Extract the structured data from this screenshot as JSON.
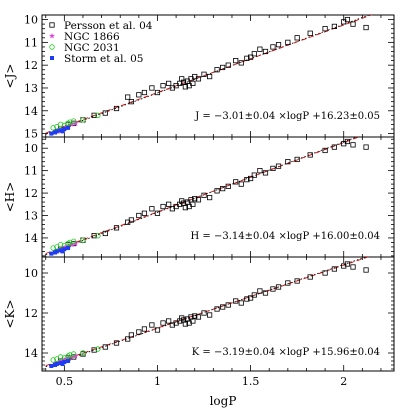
{
  "chart_data": {
    "type": "scatter",
    "xlabel": "logP",
    "xlim": [
      0.38,
      2.27
    ],
    "x_ticks": [
      0.5,
      1,
      1.5,
      2
    ],
    "x_tick_labels": [
      "0.5",
      "1",
      "1.5",
      "2"
    ],
    "legend": {
      "placement": "top-left",
      "entries": [
        {
          "label": "Persson et al. 04",
          "marker": "open-square",
          "color": "#000000"
        },
        {
          "label": "NGC 1866",
          "marker": "star",
          "color": "#e040e0"
        },
        {
          "label": "NGC 2031",
          "marker": "open-circle",
          "color": "#1ec81e"
        },
        {
          "label": "Storm et al. 05",
          "marker": "filled-square",
          "color": "#1f3df0"
        }
      ]
    },
    "panels": [
      {
        "ylabel": "<J>",
        "ylim": [
          15.15,
          9.8
        ],
        "y_ticks": [
          10,
          11,
          12,
          13,
          14,
          15
        ],
        "y_tick_labels": [
          "10",
          "11",
          "12",
          "13",
          "14",
          "15"
        ],
        "equation": "J = −3.01±0.04 ×logP +16.23±0.05",
        "fit": {
          "slope": -3.01,
          "intercept": 16.23
        },
        "alt_fit": {
          "slope": -2.96,
          "intercept": 16.16
        },
        "series": [
          {
            "name": "Persson et al. 04",
            "x": [
              0.48,
              0.52,
              0.55,
              0.6,
              0.66,
              0.72,
              0.78,
              0.84,
              0.86,
              0.9,
              0.93,
              0.97,
              1.0,
              1.03,
              1.06,
              1.08,
              1.1,
              1.12,
              1.13,
              1.14,
              1.15,
              1.16,
              1.17,
              1.18,
              1.19,
              1.2,
              1.22,
              1.25,
              1.28,
              1.32,
              1.35,
              1.38,
              1.42,
              1.45,
              1.48,
              1.5,
              1.52,
              1.55,
              1.58,
              1.62,
              1.65,
              1.7,
              1.75,
              1.82,
              1.9,
              1.95,
              2.0,
              2.02,
              2.05,
              2.12
            ],
            "y": [
              14.8,
              14.6,
              14.55,
              14.4,
              14.2,
              14.1,
              13.9,
              13.4,
              13.6,
              13.3,
              13.2,
              13.0,
              13.2,
              12.9,
              12.8,
              13.0,
              12.9,
              12.8,
              12.6,
              12.75,
              12.95,
              12.7,
              12.9,
              12.6,
              12.8,
              12.5,
              12.6,
              12.4,
              12.5,
              12.2,
              12.1,
              12.0,
              11.8,
              11.9,
              11.7,
              11.65,
              11.5,
              11.3,
              11.4,
              11.2,
              11.1,
              11.0,
              10.8,
              10.6,
              10.4,
              10.3,
              10.1,
              10.0,
              10.2,
              10.35
            ]
          },
          {
            "name": "NGC 1866",
            "x": [
              0.45,
              0.47,
              0.48,
              0.5,
              0.51,
              0.52,
              0.54,
              0.56
            ],
            "y": [
              14.95,
              14.85,
              14.9,
              14.8,
              14.75,
              14.7,
              14.6,
              14.55
            ]
          },
          {
            "name": "NGC 2031",
            "x": [
              0.44,
              0.46,
              0.48,
              0.5,
              0.52,
              0.53,
              0.55,
              0.6,
              0.68
            ],
            "y": [
              14.75,
              14.7,
              14.6,
              14.65,
              14.55,
              14.5,
              14.45,
              14.4,
              14.2
            ]
          },
          {
            "name": "Storm et al. 05",
            "x": [
              0.43,
              0.45,
              0.46,
              0.48,
              0.49,
              0.5,
              0.52
            ],
            "y": [
              15.0,
              14.95,
              14.9,
              14.85,
              14.9,
              14.8,
              14.75
            ]
          }
        ]
      },
      {
        "ylabel": "<H>",
        "ylim": [
          14.85,
          9.5
        ],
        "y_ticks": [
          10,
          11,
          12,
          13,
          14
        ],
        "y_tick_labels": [
          "10",
          "11",
          "12",
          "13",
          "14"
        ],
        "equation": "H = −3.14±0.04 ×logP +16.00±0.04",
        "fit": {
          "slope": -3.14,
          "intercept": 16.0
        },
        "alt_fit": {
          "slope": -3.09,
          "intercept": 15.93
        },
        "series": [
          {
            "name": "Persson et al. 04",
            "x": [
              0.48,
              0.52,
              0.55,
              0.6,
              0.66,
              0.72,
              0.78,
              0.84,
              0.86,
              0.9,
              0.93,
              0.97,
              1.0,
              1.03,
              1.06,
              1.08,
              1.1,
              1.12,
              1.13,
              1.14,
              1.15,
              1.16,
              1.17,
              1.18,
              1.19,
              1.2,
              1.22,
              1.25,
              1.28,
              1.32,
              1.35,
              1.38,
              1.42,
              1.45,
              1.48,
              1.5,
              1.52,
              1.55,
              1.58,
              1.62,
              1.65,
              1.7,
              1.75,
              1.82,
              1.9,
              1.95,
              2.0,
              2.02,
              2.05,
              2.12
            ],
            "y": [
              14.5,
              14.3,
              14.25,
              14.1,
              13.9,
              13.8,
              13.55,
              13.3,
              13.2,
              13.0,
              12.9,
              12.7,
              12.9,
              12.6,
              12.5,
              12.7,
              12.6,
              12.5,
              12.35,
              12.45,
              12.65,
              12.4,
              12.6,
              12.3,
              12.5,
              12.25,
              12.3,
              12.1,
              12.2,
              11.9,
              11.8,
              11.7,
              11.5,
              11.6,
              11.4,
              11.35,
              11.2,
              11.0,
              11.1,
              10.9,
              10.8,
              10.6,
              10.5,
              10.3,
              10.1,
              9.95,
              9.8,
              9.7,
              9.85,
              9.95
            ]
          },
          {
            "name": "NGC 1866",
            "x": [
              0.45,
              0.47,
              0.48,
              0.5,
              0.51,
              0.52,
              0.54,
              0.56
            ],
            "y": [
              14.6,
              14.55,
              14.5,
              14.45,
              14.4,
              14.35,
              14.3,
              14.25
            ]
          },
          {
            "name": "NGC 2031",
            "x": [
              0.44,
              0.46,
              0.48,
              0.5,
              0.52,
              0.53,
              0.55,
              0.6,
              0.68
            ],
            "y": [
              14.45,
              14.4,
              14.3,
              14.35,
              14.25,
              14.2,
              14.15,
              14.1,
              13.9
            ]
          },
          {
            "name": "Storm et al. 05",
            "x": [
              0.43,
              0.45,
              0.46,
              0.48,
              0.49,
              0.5,
              0.52
            ],
            "y": [
              14.7,
              14.65,
              14.6,
              14.55,
              14.6,
              14.5,
              14.45
            ]
          }
        ]
      },
      {
        "ylabel": "<K>",
        "ylim": [
          14.9,
          9.2
        ],
        "y_ticks": [
          10,
          12,
          14
        ],
        "y_tick_labels": [
          "10",
          "12",
          "14"
        ],
        "equation": "K = −3.19±0.04 ×logP +15.96±0.04",
        "fit": {
          "slope": -3.19,
          "intercept": 15.96
        },
        "alt_fit": {
          "slope": -3.14,
          "intercept": 15.89
        },
        "series": [
          {
            "name": "Persson et al. 04",
            "x": [
              0.48,
              0.52,
              0.55,
              0.6,
              0.66,
              0.72,
              0.78,
              0.84,
              0.86,
              0.9,
              0.93,
              0.97,
              1.0,
              1.03,
              1.06,
              1.08,
              1.1,
              1.12,
              1.13,
              1.14,
              1.15,
              1.16,
              1.17,
              1.18,
              1.19,
              1.2,
              1.22,
              1.25,
              1.28,
              1.32,
              1.35,
              1.38,
              1.42,
              1.45,
              1.48,
              1.5,
              1.52,
              1.55,
              1.58,
              1.62,
              1.65,
              1.7,
              1.75,
              1.82,
              1.9,
              1.95,
              2.0,
              2.02,
              2.05,
              2.12
            ],
            "y": [
              14.4,
              14.25,
              14.2,
              14.05,
              13.85,
              13.7,
              13.5,
              13.3,
              13.1,
              12.95,
              12.8,
              12.6,
              12.85,
              12.5,
              12.4,
              12.6,
              12.5,
              12.4,
              12.25,
              12.35,
              12.55,
              12.3,
              12.5,
              12.2,
              12.4,
              12.15,
              12.2,
              12.0,
              12.1,
              11.8,
              11.7,
              11.6,
              11.4,
              11.5,
              11.3,
              11.25,
              11.1,
              10.9,
              11.0,
              10.8,
              10.7,
              10.5,
              10.4,
              10.2,
              10.0,
              9.8,
              9.65,
              9.55,
              9.7,
              9.85
            ]
          },
          {
            "name": "NGC 1866",
            "x": [
              0.45,
              0.47,
              0.48,
              0.5,
              0.51,
              0.52,
              0.54,
              0.56
            ],
            "y": [
              14.5,
              14.45,
              14.4,
              14.35,
              14.3,
              14.25,
              14.2,
              14.15
            ]
          },
          {
            "name": "NGC 2031",
            "x": [
              0.44,
              0.46,
              0.48,
              0.5,
              0.52,
              0.53,
              0.55,
              0.6,
              0.68
            ],
            "y": [
              14.35,
              14.3,
              14.2,
              14.25,
              14.15,
              14.1,
              14.05,
              14.0,
              13.8
            ]
          },
          {
            "name": "Storm et al. 05",
            "x": [
              0.43,
              0.45,
              0.46,
              0.48,
              0.49,
              0.5,
              0.52
            ],
            "y": [
              14.65,
              14.6,
              14.55,
              14.5,
              14.55,
              14.45,
              14.4
            ]
          }
        ]
      }
    ]
  }
}
